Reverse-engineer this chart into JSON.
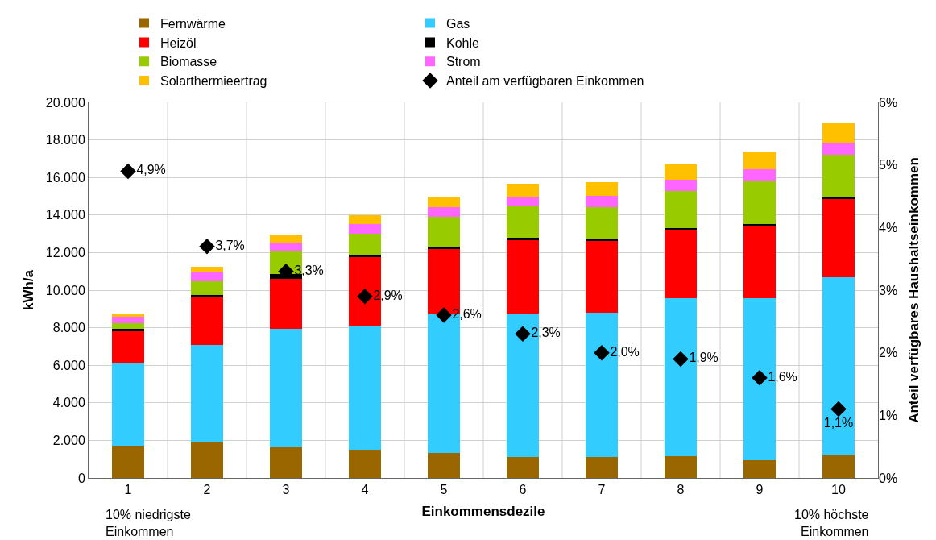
{
  "chart_data": {
    "type": "bar",
    "stacked": true,
    "xlabel": "Einkommensdezile",
    "ylabel": "kWh/a",
    "y2label": "Anteil verfügbares Haushaltseinkommen",
    "categories": [
      "1",
      "2",
      "3",
      "4",
      "5",
      "6",
      "7",
      "8",
      "9",
      "10"
    ],
    "series": [
      {
        "name": "Fernwärme",
        "color": "#996600",
        "values": [
          1700,
          1880,
          1650,
          1500,
          1350,
          1100,
          1100,
          1150,
          950,
          1200
        ]
      },
      {
        "name": "Gas",
        "color": "#33ccff",
        "values": [
          4400,
          5200,
          6300,
          6600,
          7350,
          7650,
          7700,
          8400,
          8600,
          9500
        ]
      },
      {
        "name": "Heizöl",
        "color": "#ff0000",
        "values": [
          1700,
          2550,
          2650,
          3650,
          3500,
          3900,
          3850,
          3650,
          3900,
          4150
        ]
      },
      {
        "name": "Kohle",
        "color": "#000000",
        "values": [
          120,
          100,
          250,
          120,
          100,
          130,
          80,
          100,
          80,
          90
        ]
      },
      {
        "name": "Biomasse",
        "color": "#99cc00",
        "values": [
          300,
          750,
          1200,
          1150,
          1600,
          1700,
          1700,
          2000,
          2300,
          2250
        ]
      },
      {
        "name": "Strom",
        "color": "#ff66ff",
        "values": [
          350,
          450,
          500,
          500,
          500,
          500,
          600,
          600,
          600,
          650
        ]
      },
      {
        "name": "Solarthermieertrag",
        "color": "#ffc000",
        "values": [
          200,
          330,
          420,
          480,
          570,
          700,
          700,
          800,
          950,
          1100
        ]
      },
      {
        "name": "Anteil am verfügbaren Einkommen",
        "type": "scatter",
        "axis": "y2",
        "color": "#000000",
        "marker": "diamond",
        "values": [
          4.9,
          3.7,
          3.3,
          2.9,
          2.6,
          2.3,
          2.0,
          1.9,
          1.6,
          1.1
        ],
        "value_labels": [
          "4,9%",
          "3,7%",
          "3,3%",
          "2,9%",
          "2,6%",
          "2,3%",
          "2,0%",
          "1,9%",
          "1,6%",
          "1,1%"
        ]
      }
    ],
    "ylim": [
      0,
      20000
    ],
    "yticks": [
      0,
      {
        "value": 2000,
        "label": "2.000"
      },
      {
        "value": 4000,
        "label": "4.000"
      },
      {
        "value": 6000,
        "label": "6.000"
      },
      {
        "value": 8000,
        "label": "8.000"
      },
      {
        "value": 10000,
        "label": "10.000"
      },
      {
        "value": 12000,
        "label": "12.000"
      },
      {
        "value": 14000,
        "label": "14.000"
      },
      {
        "value": 16000,
        "label": "16.000"
      },
      {
        "value": 18000,
        "label": "18.000"
      },
      {
        "value": 20000,
        "label": "20.000"
      }
    ],
    "y2lim": [
      0,
      6
    ],
    "y2ticks": [
      {
        "value": 0,
        "label": "0%"
      },
      {
        "value": 1,
        "label": "1%"
      },
      {
        "value": 2,
        "label": "2%"
      },
      {
        "value": 3,
        "label": "3%"
      },
      {
        "value": 4,
        "label": "4%"
      },
      {
        "value": 5,
        "label": "5%"
      },
      {
        "value": 6,
        "label": "6%"
      }
    ],
    "grid": true,
    "legend": "top",
    "annotations": [
      "10% niedrigste\nEinkommen",
      "10% höchste\nEinkommen"
    ]
  }
}
